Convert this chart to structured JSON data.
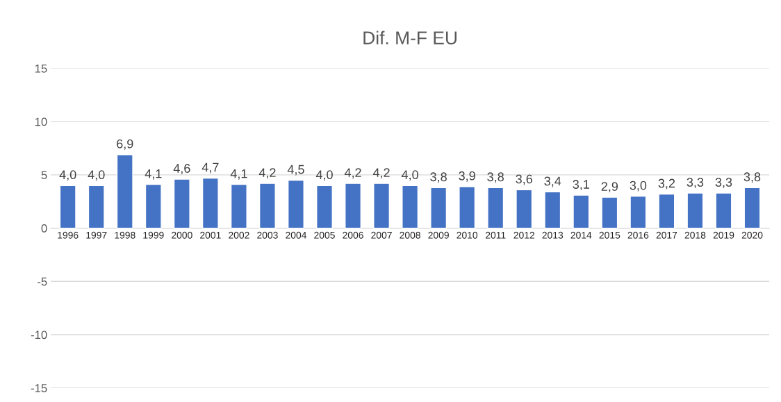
{
  "chart_data": {
    "type": "bar",
    "title": "Dif. M-F EU",
    "categories": [
      "1996",
      "1997",
      "1998",
      "1999",
      "2000",
      "2001",
      "2002",
      "2003",
      "2004",
      "2005",
      "2006",
      "2007",
      "2008",
      "2009",
      "2010",
      "2011",
      "2012",
      "2013",
      "2014",
      "2015",
      "2016",
      "2017",
      "2018",
      "2019",
      "2020"
    ],
    "values": [
      4.0,
      4.0,
      6.9,
      4.1,
      4.6,
      4.7,
      4.1,
      4.2,
      4.5,
      4.0,
      4.2,
      4.2,
      4.0,
      3.8,
      3.9,
      3.8,
      3.6,
      3.4,
      3.1,
      2.9,
      3.0,
      3.2,
      3.3,
      3.3,
      3.8
    ],
    "value_labels": [
      "4,0",
      "4,0",
      "6,9",
      "4,1",
      "4,6",
      "4,7",
      "4,1",
      "4,2",
      "4,5",
      "4,0",
      "4,2",
      "4,2",
      "4,0",
      "3,8",
      "3,9",
      "3,8",
      "3,6",
      "3,4",
      "3,1",
      "2,9",
      "3,0",
      "3,2",
      "3,3",
      "3,3",
      "3,8"
    ],
    "color": "#4472c4",
    "ylim": [
      -15,
      15
    ],
    "yticks": [
      -15,
      -10,
      -5,
      0,
      5,
      10,
      15
    ],
    "grid": "y"
  }
}
